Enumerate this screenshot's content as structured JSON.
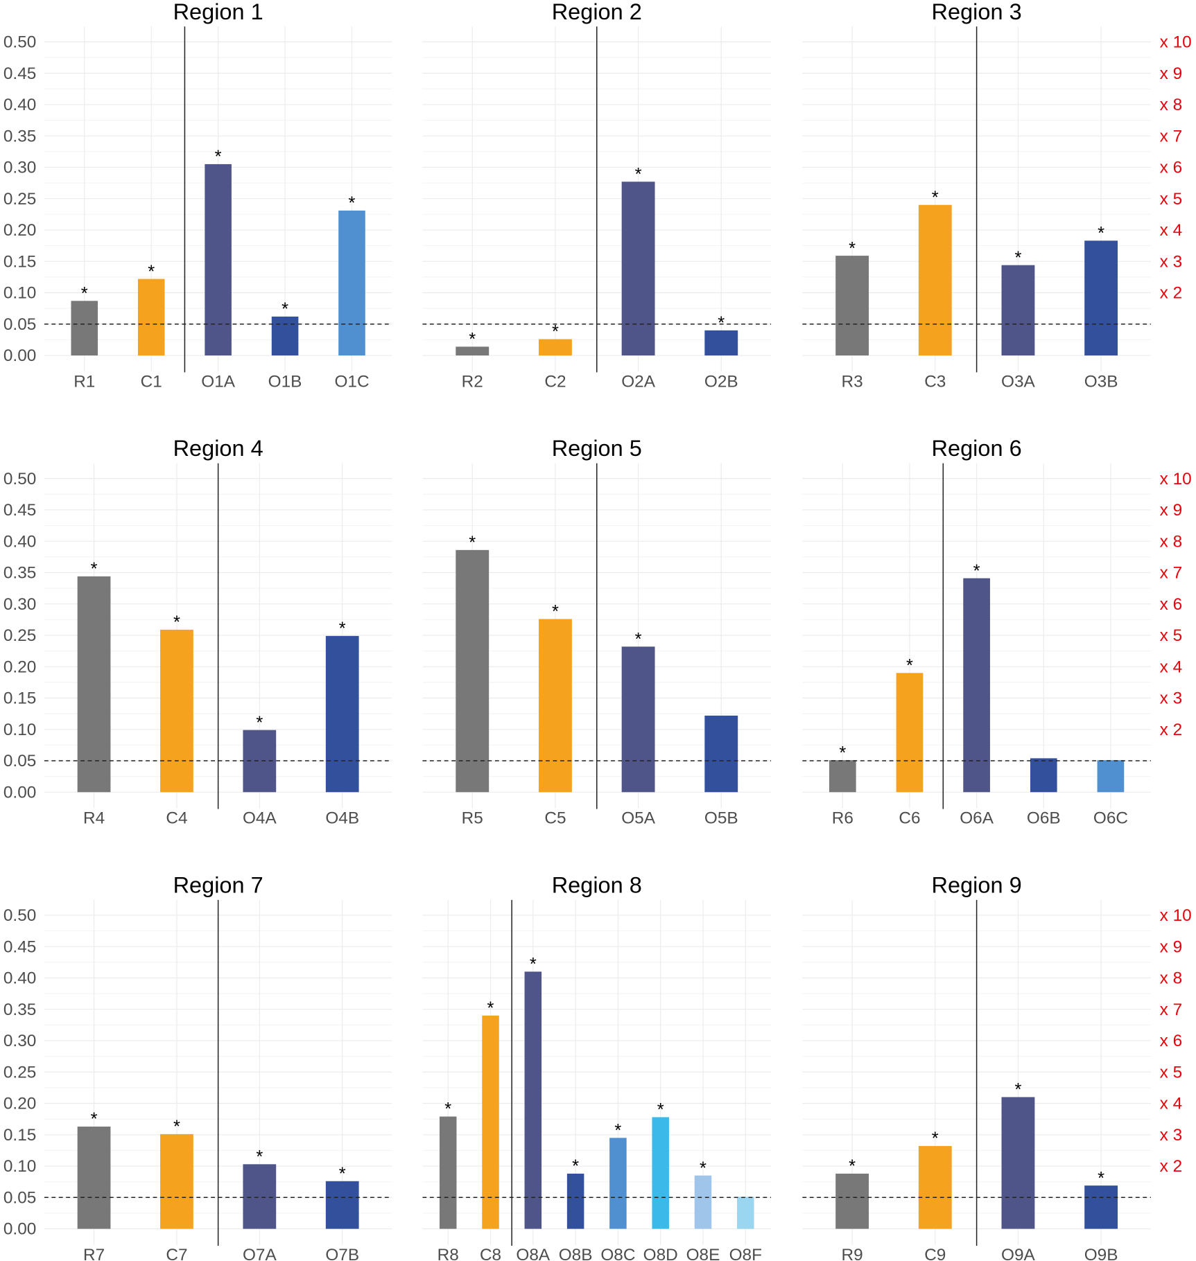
{
  "chart_data": {
    "type": "bar",
    "layout": "3x3 facets",
    "ylim": [
      0,
      0.5
    ],
    "y_ticks": [
      "0.00",
      "0.05",
      "0.10",
      "0.15",
      "0.20",
      "0.25",
      "0.30",
      "0.35",
      "0.40",
      "0.45",
      "0.50"
    ],
    "secondary_y_ticks": [
      "x 2",
      "x 3",
      "x 4",
      "x 5",
      "x 6",
      "x 7",
      "x 8",
      "x 9",
      "x 10"
    ],
    "secondary_axis_color": "#e8000b",
    "reference_line": {
      "y": 0.05,
      "style": "dashed"
    },
    "grid": true,
    "colors": {
      "R": "#787878",
      "C": "#f5a21e",
      "A": "#4f5588",
      "B": "#33509c",
      "C2": "#508fd0",
      "D": "#3bb9e8",
      "E": "#9fc6ea",
      "F": "#9ad6f0"
    },
    "panels": [
      {
        "title": "Region 1",
        "categories": [
          "R1",
          "C1",
          "O1A",
          "O1B",
          "O1C"
        ],
        "values": [
          0.087,
          0.122,
          0.305,
          0.062,
          0.231
        ],
        "significant": [
          true,
          true,
          true,
          true,
          true
        ]
      },
      {
        "title": "Region 2",
        "categories": [
          "R2",
          "C2",
          "O2A",
          "O2B"
        ],
        "values": [
          0.014,
          0.026,
          0.277,
          0.04
        ],
        "significant": [
          true,
          true,
          true,
          true
        ]
      },
      {
        "title": "Region 3",
        "categories": [
          "R3",
          "C3",
          "O3A",
          "O3B"
        ],
        "values": [
          0.159,
          0.24,
          0.144,
          0.183
        ],
        "significant": [
          true,
          true,
          true,
          true
        ]
      },
      {
        "title": "Region 4",
        "categories": [
          "R4",
          "C4",
          "O4A",
          "O4B"
        ],
        "values": [
          0.344,
          0.259,
          0.099,
          0.249
        ],
        "significant": [
          true,
          true,
          true,
          true
        ]
      },
      {
        "title": "Region 5",
        "categories": [
          "R5",
          "C5",
          "O5A",
          "O5B"
        ],
        "values": [
          0.386,
          0.276,
          0.232,
          0.122
        ],
        "significant": [
          true,
          true,
          true,
          false
        ]
      },
      {
        "title": "Region 6",
        "categories": [
          "R6",
          "C6",
          "O6A",
          "O6B",
          "O6C"
        ],
        "values": [
          0.051,
          0.19,
          0.341,
          0.054,
          0.051
        ],
        "significant": [
          true,
          true,
          true,
          false,
          false
        ]
      },
      {
        "title": "Region 7",
        "categories": [
          "R7",
          "C7",
          "O7A",
          "O7B"
        ],
        "values": [
          0.163,
          0.151,
          0.103,
          0.076
        ],
        "significant": [
          true,
          true,
          true,
          true
        ]
      },
      {
        "title": "Region 8",
        "categories": [
          "R8",
          "C8",
          "O8A",
          "O8B",
          "O8C",
          "O8D",
          "O8E",
          "O8F"
        ],
        "values": [
          0.179,
          0.34,
          0.41,
          0.088,
          0.145,
          0.178,
          0.085,
          0.051
        ],
        "significant": [
          true,
          true,
          true,
          true,
          true,
          true,
          true,
          false
        ]
      },
      {
        "title": "Region 9",
        "categories": [
          "R9",
          "C9",
          "O9A",
          "O9B"
        ],
        "values": [
          0.088,
          0.132,
          0.21,
          0.069
        ],
        "significant": [
          true,
          true,
          true,
          true
        ]
      }
    ],
    "significance_marker": "*"
  }
}
